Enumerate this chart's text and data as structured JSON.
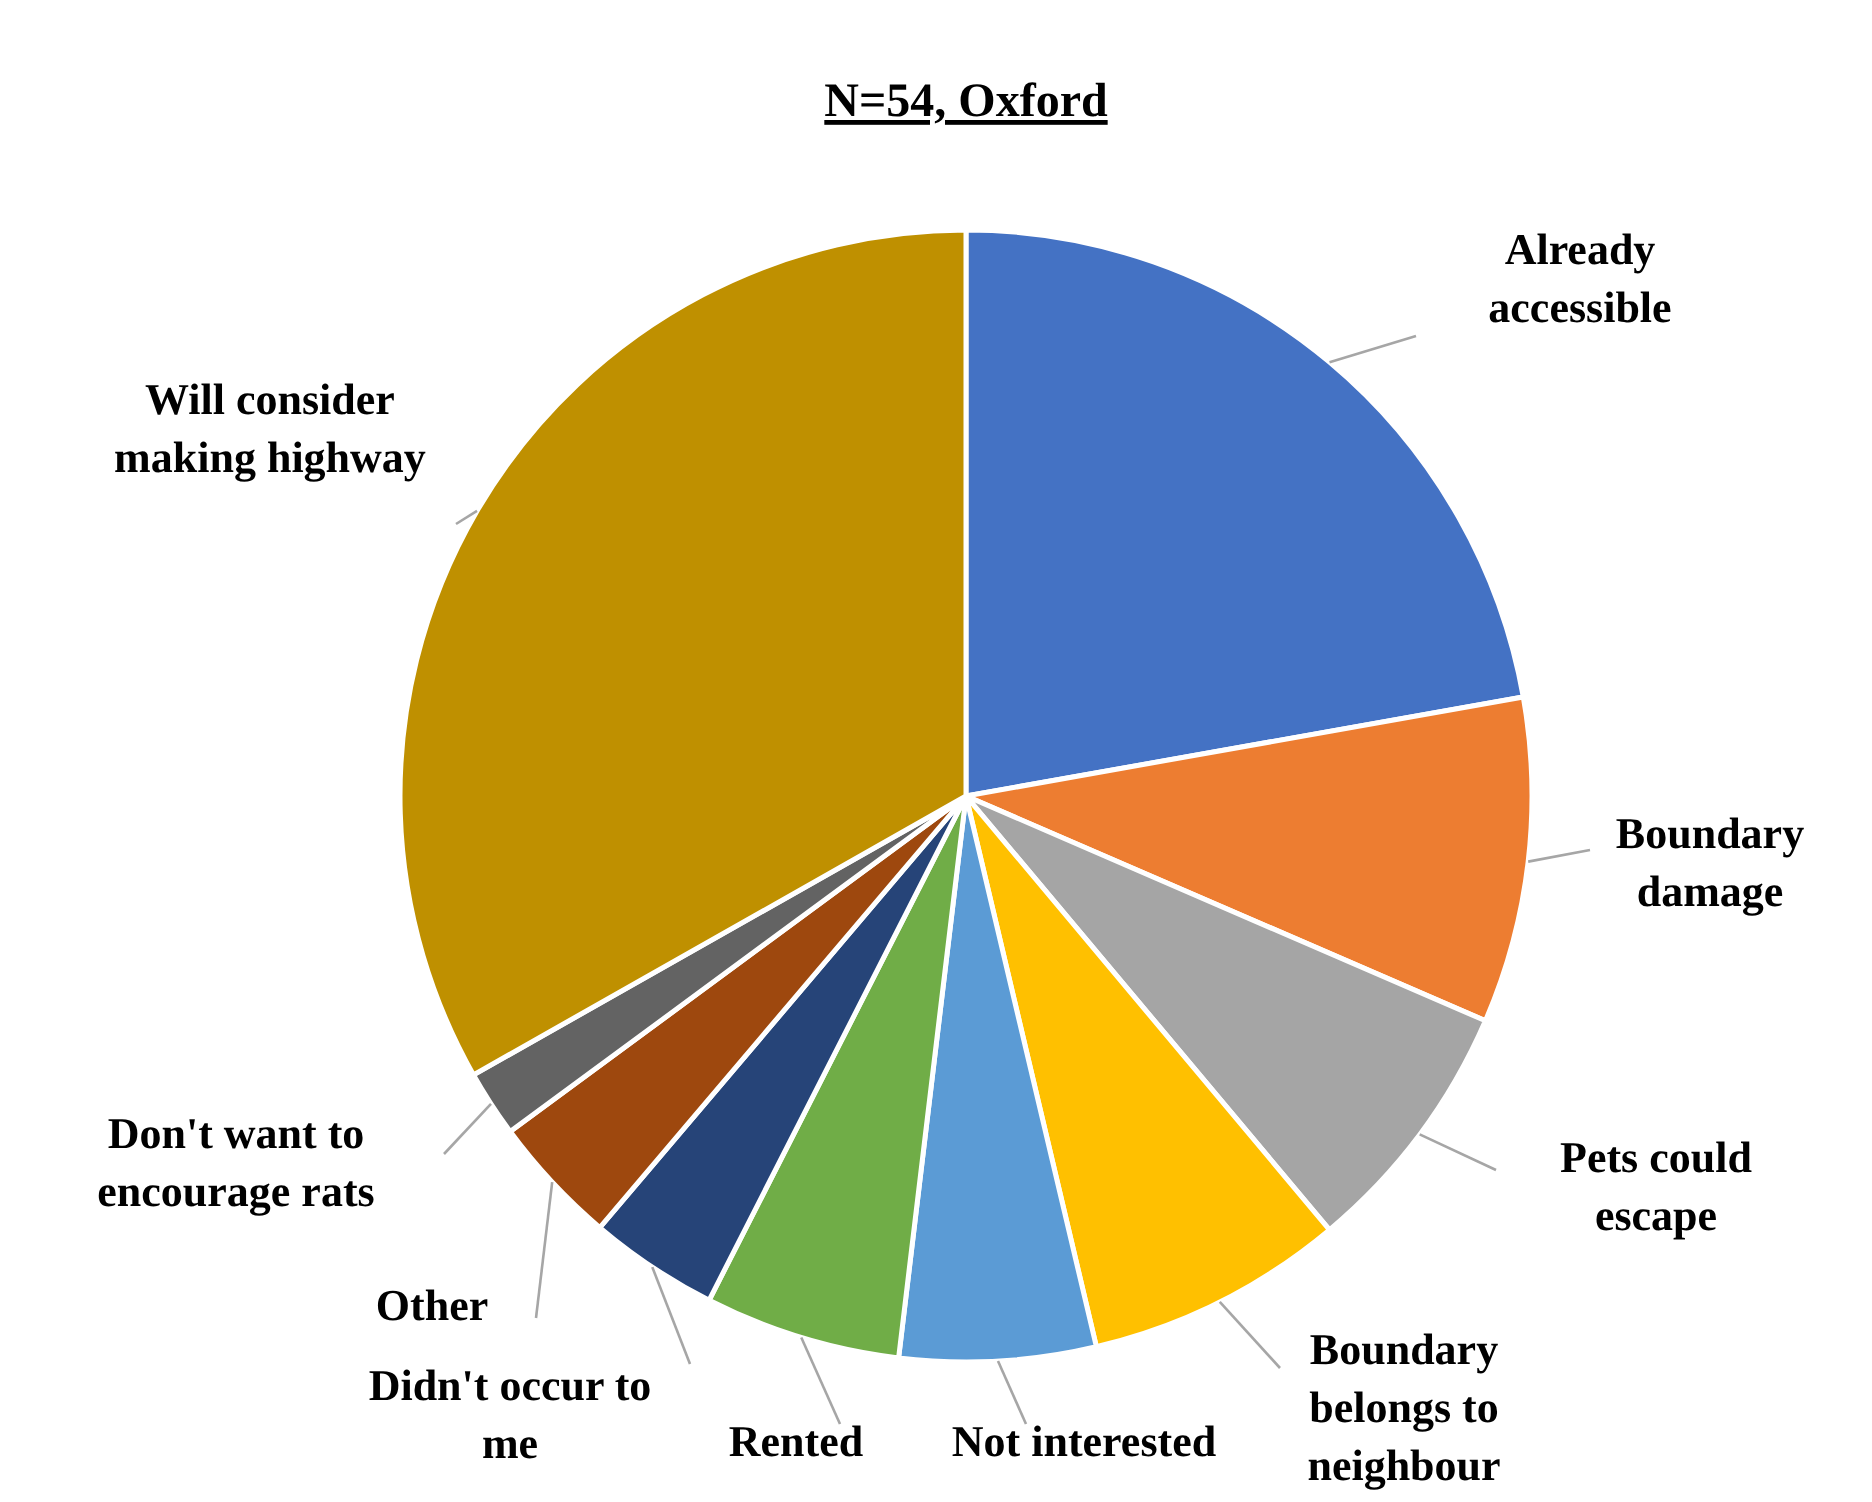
{
  "chart_data": {
    "type": "pie",
    "title": "N=54, Oxford",
    "categories": [
      "Already accessible",
      "Boundary damage",
      "Pets could escape",
      "Boundary belongs to neighbour",
      "Not interested",
      "Rented",
      "Didn't occur to me",
      "Other",
      "Don't want to encourage rats",
      "Will consider making highway"
    ],
    "values": [
      22.2,
      9.3,
      7.4,
      7.4,
      5.6,
      5.6,
      3.7,
      3.7,
      1.9,
      33.2
    ],
    "colors": [
      "#4472c4",
      "#ed7d31",
      "#a5a5a5",
      "#ffc000",
      "#5b9bd5",
      "#70ad47",
      "#264478",
      "#9e480e",
      "#636363",
      "#bf9000"
    ]
  }
}
